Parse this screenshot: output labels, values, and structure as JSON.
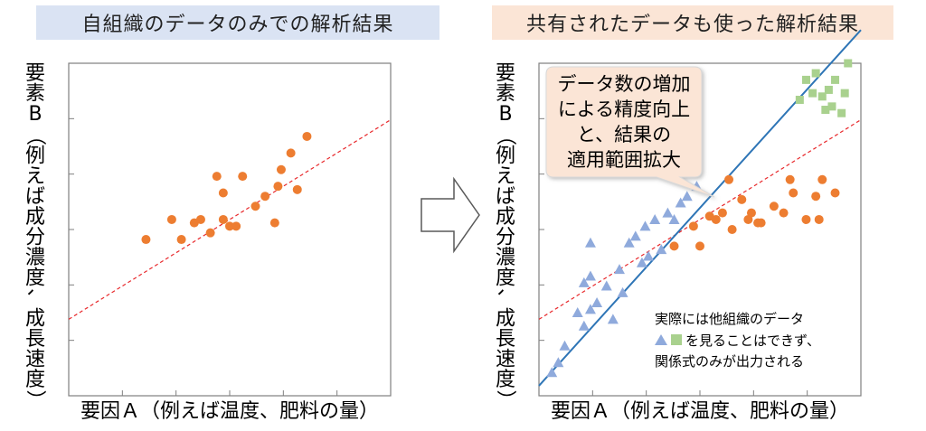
{
  "left": {
    "title": "自組織のデータのみでの解析結果",
    "ylabel": [
      "要",
      "素",
      "B",
      "（",
      "例",
      "え",
      "ば",
      "成",
      "分",
      "濃",
      "度",
      "、",
      "成",
      "長",
      "速",
      "度",
      "）"
    ],
    "xlabel": "要因Ａ（例えば温度、肥料の量）"
  },
  "right": {
    "title": "共有されたデータも使った解析結果",
    "ylabel": [
      "要",
      "素",
      "B",
      "（",
      "例",
      "え",
      "ば",
      "成",
      "分",
      "濃",
      "度",
      "、",
      "成",
      "長",
      "速",
      "度",
      "）"
    ],
    "xlabel": "要因Ａ（例えば温度、肥料の量）",
    "callout": [
      "データ数の増加",
      "による精度向上",
      "と、結果の",
      "適用範囲拡大"
    ],
    "note": [
      "実際には他組織のデータ",
      "を見ることはできず、",
      "関係式のみが出力される"
    ]
  },
  "colors": {
    "orange": "#ed7d31",
    "blue_triangle": "#8faadc",
    "green_square": "#a9d18e",
    "fit_red": "#e8282b",
    "fit_blue": "#2e75b6",
    "left_title_bg": "#dae3f3",
    "right_title_bg": "#fbe5d6",
    "callout_bg": "#fbe5d6"
  },
  "chart_data": [
    {
      "type": "scatter",
      "title": "自組織のデータのみでの解析結果",
      "xlabel": "要因Ａ（例えば温度、肥料の量）",
      "ylabel": "要素B（例えば成分濃度、成長速度）",
      "xlim": [
        0,
        10
      ],
      "ylim": [
        0,
        10
      ],
      "grid": false,
      "series": [
        {
          "marker": "circle",
          "color": "#ed7d31",
          "x": [
            2.4,
            3.2,
            3.5,
            3.9,
            4.1,
            4.4,
            4.6,
            4.8,
            4.8,
            5.0,
            5.2,
            5.4,
            5.8,
            6.1,
            6.4,
            6.5,
            6.6,
            6.9,
            7.1,
            7.4
          ],
          "y": [
            4.7,
            5.3,
            4.7,
            5.2,
            5.3,
            4.9,
            6.6,
            5.3,
            6.1,
            5.1,
            5.1,
            6.6,
            5.7,
            6.0,
            5.2,
            6.3,
            6.8,
            7.3,
            6.2,
            7.8
          ]
        },
        {
          "name": "",
          "type": "line",
          "style": "dashed",
          "color": "#e8282b",
          "x": [
            0,
            10
          ],
          "y": [
            2.3,
            8.3
          ]
        }
      ]
    },
    {
      "type": "scatter",
      "title": "共有されたデータも使った解析結果",
      "xlabel": "要因Ａ（例えば温度、肥料の量）",
      "ylabel": "要素B（例えば成分濃度、成長速度）",
      "xlim": [
        0,
        10
      ],
      "ylim": [
        0,
        10
      ],
      "grid": false,
      "series": [
        {
          "marker": "circle",
          "color": "#ed7d31",
          "x": [
            4.2,
            4.8,
            5.0,
            5.3,
            5.5,
            5.7,
            5.9,
            6.0,
            6.3,
            6.5,
            6.6,
            6.8,
            6.9,
            7.3,
            7.6,
            7.8,
            7.9,
            8.3,
            8.6,
            8.7,
            8.8,
            9.2
          ],
          "y": [
            4.5,
            5.1,
            4.5,
            5.4,
            5.3,
            5.5,
            6.5,
            5.0,
            5.9,
            5.3,
            5.5,
            5.2,
            5.2,
            5.7,
            5.5,
            6.5,
            6.1,
            5.3,
            6.0,
            5.3,
            6.5,
            6.1
          ]
        },
        {
          "marker": "triangle",
          "color": "#8faadc",
          "x": [
            0.4,
            0.6,
            0.8,
            1.2,
            1.4,
            1.4,
            1.6,
            1.6,
            1.6,
            1.8,
            2.1,
            2.3,
            2.5,
            2.6,
            2.8,
            3.0,
            3.2,
            3.3,
            3.4,
            3.6,
            3.8,
            4.0,
            4.2,
            4.4,
            4.6,
            4.9
          ],
          "y": [
            0.7,
            1.0,
            1.5,
            2.5,
            2.1,
            3.4,
            2.6,
            3.6,
            4.6,
            2.8,
            3.3,
            2.3,
            3.8,
            3.1,
            4.6,
            4.8,
            4.0,
            5.1,
            4.2,
            5.3,
            4.4,
            5.5,
            5.3,
            5.8,
            6.0,
            6.3
          ]
        },
        {
          "marker": "square",
          "color": "#a9d18e",
          "x": [
            8.1,
            8.3,
            8.5,
            8.6,
            8.8,
            8.9,
            9.0,
            9.1,
            9.2,
            9.4,
            9.5,
            9.6
          ],
          "y": [
            8.9,
            9.5,
            9.1,
            9.7,
            9.0,
            8.6,
            9.2,
            8.7,
            9.5,
            8.5,
            9.1,
            10.0
          ]
        },
        {
          "name": "",
          "type": "line",
          "style": "dashed",
          "color": "#e8282b",
          "x": [
            0,
            10
          ],
          "y": [
            2.3,
            8.3
          ]
        },
        {
          "name": "",
          "type": "line",
          "style": "solid",
          "color": "#2e75b6",
          "x": [
            0,
            10
          ],
          "y": [
            0.3,
            11.0
          ]
        }
      ]
    }
  ]
}
